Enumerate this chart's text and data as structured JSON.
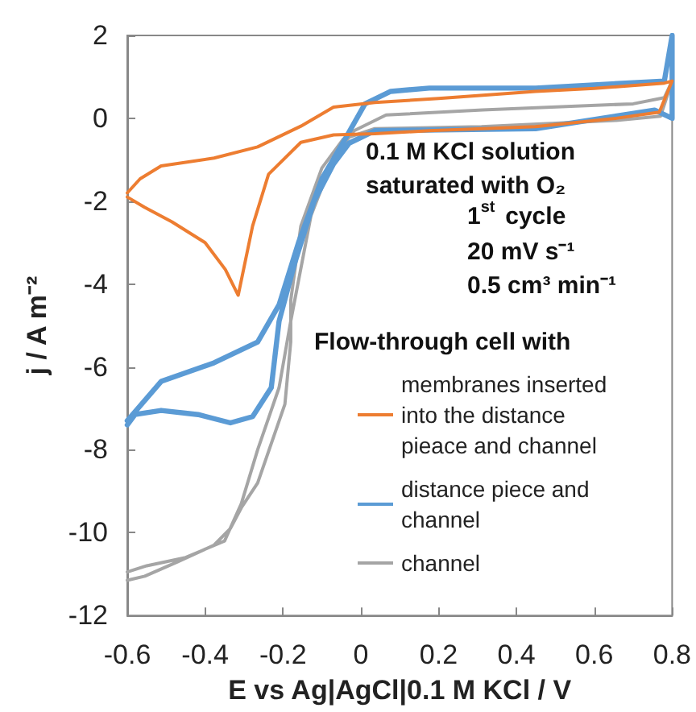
{
  "chart_data": {
    "type": "line",
    "xlabel": "E vs Ag|AgCl|0.1 M KCl / V",
    "ylabel": "j / A m⁻²",
    "legend_title": "Flow-through cell with",
    "legend": "bottom right",
    "grid": false,
    "xlim": [
      -0.6,
      0.8
    ],
    "xticks": [
      -0.6,
      -0.4,
      -0.2,
      {
        "value": 0,
        "label": "0"
      },
      0.2,
      0.4,
      0.6,
      0.8
    ],
    "ylim": [
      -12,
      2
    ],
    "yticks": [
      -12,
      -10,
      -8,
      -6,
      -4,
      -2,
      0,
      2
    ],
    "annotations": [
      "0.1 M KCl solution saturated with O₂",
      "1$^{st}$ cycle",
      "20 mV s⁻¹",
      "0.5 cm³ min⁻¹"
    ],
    "series": [
      {
        "name": "membranes inserted into the distance pieace and channel",
        "color": "#ed7d31",
        "x": [
          -0.6,
          -0.567,
          -0.513,
          -0.377,
          -0.265,
          -0.154,
          -0.07,
          0.036,
          0.2,
          0.449,
          0.6,
          0.78,
          0.8,
          0.767,
          0.656,
          0.449,
          0.176,
          0.036,
          -0.07,
          -0.154,
          -0.237,
          -0.278,
          -0.315,
          -0.348,
          -0.4,
          -0.485,
          -0.555,
          -0.6
        ],
        "values": [
          -1.8,
          -1.46,
          -1.15,
          -0.96,
          -0.69,
          -0.19,
          0.27,
          0.38,
          0.48,
          0.65,
          0.72,
          0.85,
          0.9,
          0.15,
          0,
          -0.2,
          -0.3,
          -0.37,
          -0.4,
          -0.58,
          -1.35,
          -2.6,
          -4.27,
          -3.65,
          -3.0,
          -2.5,
          -2.15,
          -1.9
        ]
      },
      {
        "name": "distance piece and channel",
        "color": "#5b9bd5",
        "x": [
          -0.6,
          -0.513,
          -0.377,
          -0.265,
          -0.21,
          -0.16,
          -0.1,
          -0.045,
          0.011,
          0.077,
          0.176,
          0.449,
          0.78,
          0.8,
          0.8,
          0.755,
          0.449,
          0.036,
          -0.03,
          -0.07,
          -0.12,
          -0.17,
          -0.21,
          -0.23,
          -0.278,
          -0.335,
          -0.418,
          -0.513,
          -0.58,
          -0.6
        ],
        "values": [
          -7.3,
          -6.35,
          -5.9,
          -5.4,
          -4.5,
          -3.0,
          -1.46,
          -0.58,
          0.35,
          0.65,
          0.73,
          0.73,
          0.9,
          2,
          0,
          0.2,
          -0.25,
          -0.3,
          -0.6,
          -1.1,
          -2.0,
          -3.5,
          -4.9,
          -6.5,
          -7.2,
          -7.35,
          -7.15,
          -7.05,
          -7.15,
          -7.4
        ]
      },
      {
        "name": "channel",
        "color": "#a5a5a5",
        "x": [
          -0.6,
          -0.55,
          -0.45,
          -0.35,
          -0.307,
          -0.265,
          -0.21,
          -0.18,
          -0.128,
          -0.07,
          -0.017,
          0.065,
          0.313,
          0.7,
          0.78,
          0.8,
          0.77,
          0.656,
          0.31,
          0.036,
          -0.045,
          -0.1,
          -0.154,
          -0.18,
          -0.18,
          -0.195,
          -0.265,
          -0.307,
          -0.335,
          -0.377,
          -0.47,
          -0.555,
          -0.6
        ],
        "values": [
          -10.95,
          -10.8,
          -10.6,
          -10.2,
          -9.3,
          -8.0,
          -6.5,
          -4.9,
          -2.35,
          -0.95,
          -0.3,
          0.08,
          0.2,
          0.35,
          0.5,
          0.9,
          0.05,
          -0.05,
          -0.2,
          -0.25,
          -0.5,
          -1.2,
          -2.6,
          -4.4,
          -5.4,
          -6.9,
          -8.8,
          -9.4,
          -9.9,
          -10.3,
          -10.7,
          -11.05,
          -11.15
        ]
      }
    ]
  }
}
